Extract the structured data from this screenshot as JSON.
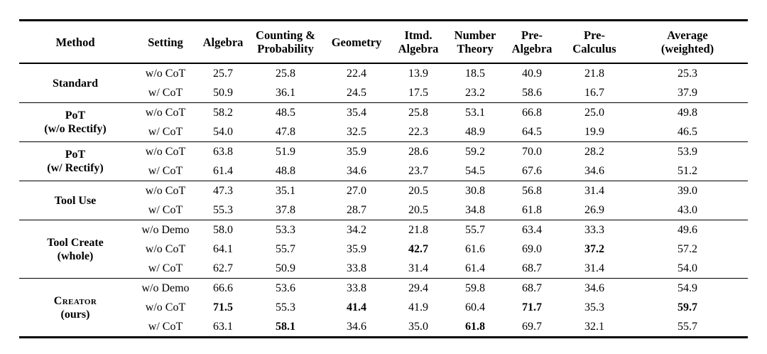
{
  "colors": {
    "rule": "#000000",
    "text": "#000000",
    "background": "#ffffff"
  },
  "table": {
    "headers": [
      "Method",
      "Setting",
      "Algebra",
      "Counting &\nProbability",
      "Geometry",
      "Itmd.\nAlgebra",
      "Number\nTheory",
      "Pre-\nAlgebra",
      "Pre-\nCalculus",
      "Average\n(weighted)"
    ],
    "groups": [
      {
        "method": {
          "name": "Standard",
          "sub": ""
        },
        "rows": [
          {
            "setting": "w/o CoT",
            "values": [
              "25.7",
              "25.8",
              "22.4",
              "13.9",
              "18.5",
              "40.9",
              "21.8",
              "25.3"
            ],
            "bold": []
          },
          {
            "setting": "w/ CoT",
            "values": [
              "50.9",
              "36.1",
              "24.5",
              "17.5",
              "23.2",
              "58.6",
              "16.7",
              "37.9"
            ],
            "bold": []
          }
        ]
      },
      {
        "method": {
          "name": "PoT",
          "sub": "(w/o Rectify)"
        },
        "rows": [
          {
            "setting": "w/o CoT",
            "values": [
              "58.2",
              "48.5",
              "35.4",
              "25.8",
              "53.1",
              "66.8",
              "25.0",
              "49.8"
            ],
            "bold": []
          },
          {
            "setting": "w/ CoT",
            "values": [
              "54.0",
              "47.8",
              "32.5",
              "22.3",
              "48.9",
              "64.5",
              "19.9",
              "46.5"
            ],
            "bold": []
          }
        ]
      },
      {
        "method": {
          "name": "PoT",
          "sub": "(w/ Rectify)"
        },
        "rows": [
          {
            "setting": "w/o CoT",
            "values": [
              "63.8",
              "51.9",
              "35.9",
              "28.6",
              "59.2",
              "70.0",
              "28.2",
              "53.9"
            ],
            "bold": []
          },
          {
            "setting": "w/ CoT",
            "values": [
              "61.4",
              "48.8",
              "34.6",
              "23.7",
              "54.5",
              "67.6",
              "34.6",
              "51.2"
            ],
            "bold": []
          }
        ]
      },
      {
        "method": {
          "name": "Tool Use",
          "sub": ""
        },
        "rows": [
          {
            "setting": "w/o CoT",
            "values": [
              "47.3",
              "35.1",
              "27.0",
              "20.5",
              "30.8",
              "56.8",
              "31.4",
              "39.0"
            ],
            "bold": []
          },
          {
            "setting": "w/ CoT",
            "values": [
              "55.3",
              "37.8",
              "28.7",
              "20.5",
              "34.8",
              "61.8",
              "26.9",
              "43.0"
            ],
            "bold": []
          }
        ]
      },
      {
        "method": {
          "name": "Tool Create",
          "sub": "(whole)"
        },
        "rows": [
          {
            "setting": "w/o Demo",
            "values": [
              "58.0",
              "53.3",
              "34.2",
              "21.8",
              "55.7",
              "63.4",
              "33.3",
              "49.6"
            ],
            "bold": []
          },
          {
            "setting": "w/o CoT",
            "values": [
              "64.1",
              "55.7",
              "35.9",
              "42.7",
              "61.6",
              "69.0",
              "37.2",
              "57.2"
            ],
            "bold": [
              3,
              6
            ]
          },
          {
            "setting": "w/ CoT",
            "values": [
              "62.7",
              "50.9",
              "33.8",
              "31.4",
              "61.4",
              "68.7",
              "31.4",
              "54.0"
            ],
            "bold": []
          }
        ]
      },
      {
        "method": {
          "name": "Creator",
          "sub": "(ours)",
          "smallcaps": true
        },
        "rows": [
          {
            "setting": "w/o Demo",
            "values": [
              "66.6",
              "53.6",
              "33.8",
              "29.4",
              "59.8",
              "68.7",
              "34.6",
              "54.9"
            ],
            "bold": []
          },
          {
            "setting": "w/o CoT",
            "values": [
              "71.5",
              "55.3",
              "41.4",
              "41.9",
              "60.4",
              "71.7",
              "35.3",
              "59.7"
            ],
            "bold": [
              0,
              2,
              5,
              7
            ]
          },
          {
            "setting": "w/ CoT",
            "values": [
              "63.1",
              "58.1",
              "34.6",
              "35.0",
              "61.8",
              "69.7",
              "32.1",
              "55.7"
            ],
            "bold": [
              1,
              4
            ]
          }
        ]
      }
    ]
  }
}
